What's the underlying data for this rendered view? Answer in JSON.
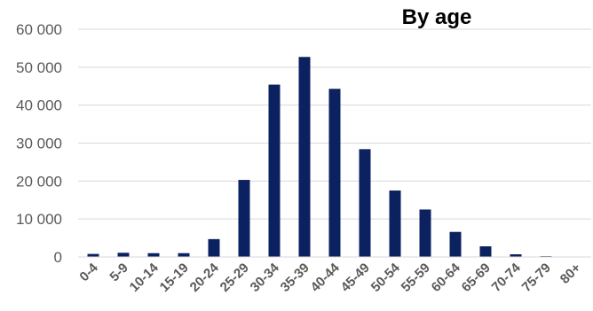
{
  "chart_data": {
    "type": "bar",
    "title": "By age",
    "xlabel": "",
    "ylabel": "",
    "categories": [
      "0-4",
      "5-9",
      "10-14",
      "15-19",
      "20-24",
      "25-29",
      "30-34",
      "35-39",
      "40-44",
      "45-49",
      "50-54",
      "55-59",
      "60-64",
      "65-69",
      "70-74",
      "75-79",
      "80+"
    ],
    "values": [
      800,
      1100,
      1000,
      1000,
      4700,
      20300,
      45400,
      52700,
      44300,
      28400,
      17500,
      12500,
      6600,
      2800,
      700,
      200,
      100
    ],
    "ylim": [
      0,
      60000
    ],
    "yticks": [
      0,
      10000,
      20000,
      30000,
      40000,
      50000,
      60000
    ],
    "ytick_labels": [
      "0",
      "10 000",
      "20 000",
      "30 000",
      "40 000",
      "50 000",
      "60 000"
    ],
    "grid": true,
    "legend": "none",
    "colors": {
      "bar": "#0b2160",
      "grid": "#d9d9d9",
      "axis": "#d9d9d9"
    }
  }
}
